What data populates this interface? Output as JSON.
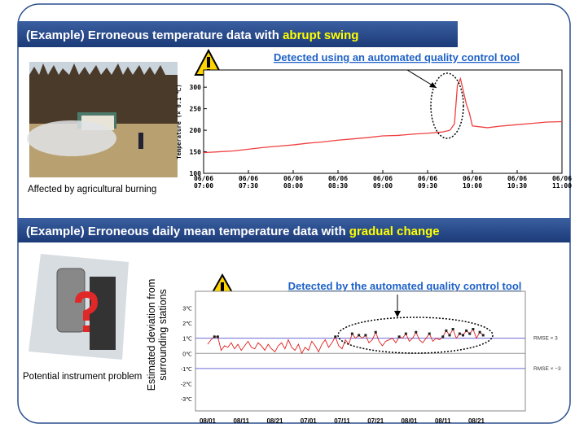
{
  "slide": {
    "header1": {
      "text": "(Example) Erroneous temperature data with ",
      "highlight": "abrupt swing"
    },
    "header2": {
      "text": "(Example) Erroneous daily mean temperature data with ",
      "highlight": "gradual change"
    },
    "caption1": "Affected by agricultural burning",
    "caption2": "Potential instrument problem",
    "note1": "Detected using an automated quality control tool",
    "note2": "Detected by the automated quality control tool"
  },
  "chart_data": [
    {
      "type": "line",
      "ylabel": "Temperature (× 0.1 ℃)",
      "color": "#f04040",
      "x": [
        "06/06 07:00",
        "06/06 07:10",
        "06/06 07:20",
        "06/06 07:30",
        "06/06 07:40",
        "06/06 07:50",
        "06/06 08:00",
        "06/06 08:10",
        "06/06 08:20",
        "06/06 08:30",
        "06/06 08:40",
        "06/06 08:50",
        "06/06 09:00",
        "06/06 09:10",
        "06/06 09:20",
        "06/06 09:30",
        "06/06 09:40",
        "06/06 09:45",
        "06/06 09:48",
        "06/06 09:50",
        "06/06 09:52",
        "06/06 09:54",
        "06/06 09:56",
        "06/06 09:58",
        "06/06 10:00",
        "06/06 10:10",
        "06/06 10:20",
        "06/06 10:30",
        "06/06 10:40",
        "06/06 10:50",
        "06/06 11:00"
      ],
      "values": [
        148,
        150,
        152,
        156,
        160,
        163,
        166,
        170,
        173,
        177,
        180,
        183,
        187,
        188,
        191,
        193,
        196,
        200,
        215,
        305,
        320,
        290,
        260,
        240,
        210,
        206,
        210,
        213,
        216,
        219,
        220
      ],
      "xlim": [
        "06/06 07:00",
        "06/06 11:00"
      ],
      "xticks": [
        "06/06 07:00",
        "06/06 07:30",
        "06/06 08:00",
        "06/06 08:30",
        "06/06 09:00",
        "06/06 09:30",
        "06/06 10:00",
        "06/06 10:30",
        "06/06 11:00"
      ],
      "ylim": [
        100,
        340
      ],
      "yticks": [
        100,
        150,
        200,
        250,
        300
      ]
    },
    {
      "type": "line",
      "ylabel": [
        "Estimated deviation from",
        "surrounding stations"
      ],
      "color": "#e02020",
      "categories": [
        "08/01",
        null,
        null,
        null,
        null,
        null,
        null,
        null,
        null,
        null,
        "08/11",
        null,
        null,
        null,
        null,
        null,
        null,
        null,
        null,
        null,
        "08/21",
        null,
        null,
        null,
        null,
        null,
        null,
        null,
        null,
        null,
        "07/01",
        null,
        null,
        null,
        null,
        null,
        null,
        null,
        null,
        null,
        "07/11",
        null,
        null,
        null,
        null,
        null,
        null,
        null,
        null,
        null,
        "07/21",
        null,
        null,
        null,
        null,
        null,
        null,
        null,
        null,
        null,
        "08/01",
        null,
        null,
        null,
        null,
        null,
        null,
        null,
        null,
        null,
        "08/11",
        null,
        null,
        null,
        null,
        null,
        null,
        null,
        null,
        null,
        "08/21",
        null,
        null
      ],
      "values": [
        0.6,
        0.9,
        1.1,
        1.1,
        0.2,
        0.5,
        0.4,
        0.7,
        0.3,
        0.6,
        0.2,
        0.5,
        0.8,
        0.4,
        0.3,
        0.7,
        0.5,
        0.2,
        0.6,
        0.3,
        0.1,
        0.5,
        0.7,
        0.3,
        0.9,
        0.4,
        0.2,
        0.6,
        0.0,
        0.4,
        0.2,
        0.8,
        0.5,
        0.1,
        0.6,
        0.9,
        0.4,
        0.7,
        1.1,
        0.5,
        0.3,
        0.9,
        0.6,
        1.3,
        1.0,
        1.2,
        1.0,
        1.2,
        0.7,
        0.9,
        1.4,
        0.8,
        0.5,
        0.8,
        0.9,
        1.0,
        0.7,
        1.1,
        1.0,
        1.3,
        0.8,
        1.0,
        1.4,
        0.9,
        0.7,
        1.0,
        1.3,
        0.8,
        1.0,
        0.9,
        1.1,
        1.5,
        1.2,
        1.6,
        1.0,
        1.3,
        1.2,
        1.5,
        1.3,
        1.6,
        1.0,
        1.4,
        1.2
      ],
      "ylim": [
        -3.8,
        4.1
      ],
      "yticks": [
        {
          "value": 3,
          "label": "3℃"
        },
        {
          "value": 2,
          "label": "2℃"
        },
        {
          "value": 1,
          "label": "1℃"
        },
        {
          "value": 0,
          "label": "0℃"
        },
        {
          "value": -1,
          "label": "-1℃"
        },
        {
          "value": -2,
          "label": "-2℃"
        },
        {
          "value": -3,
          "label": "-3℃"
        }
      ],
      "rmse_lines": [
        {
          "value": 1,
          "label": "RMSE × 3"
        },
        {
          "value": -1,
          "label": "RMSE × −3"
        }
      ]
    }
  ]
}
